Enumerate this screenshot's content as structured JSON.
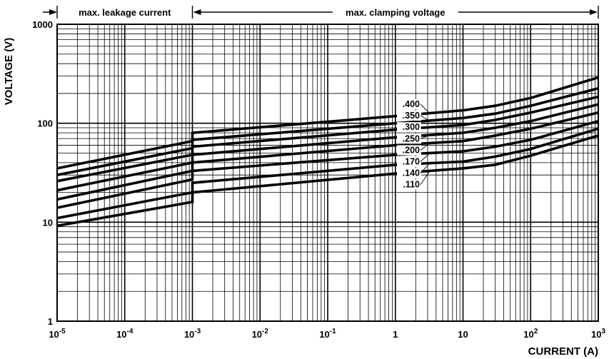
{
  "chart_data": {
    "type": "line",
    "xlabel": "CURRENT (A)",
    "ylabel": "VOLTAGE (V)",
    "x_scale": "log",
    "y_scale": "log",
    "xlim": [
      1e-05,
      1000
    ],
    "ylim": [
      1,
      1000
    ],
    "grid": true,
    "x_ticks": [
      {
        "value": 1e-05,
        "base": "10",
        "exp": "-5"
      },
      {
        "value": 0.0001,
        "base": "10",
        "exp": "-4"
      },
      {
        "value": 0.001,
        "base": "10",
        "exp": "-3"
      },
      {
        "value": 0.01,
        "base": "10",
        "exp": "-2"
      },
      {
        "value": 0.1,
        "base": "10",
        "exp": "-1"
      },
      {
        "value": 1,
        "base": "1",
        "exp": ""
      },
      {
        "value": 10,
        "base": "10",
        "exp": ""
      },
      {
        "value": 100,
        "base": "10",
        "exp": "2"
      },
      {
        "value": 1000,
        "base": "10",
        "exp": "3"
      }
    ],
    "y_ticks": [
      {
        "value": 1,
        "label": "1"
      },
      {
        "value": 10,
        "label": "10"
      },
      {
        "value": 100,
        "label": "100"
      },
      {
        "value": 1000,
        "label": "1000"
      }
    ],
    "regions": [
      {
        "label": "max. leakage current",
        "from": 1e-05,
        "to": 0.001
      },
      {
        "label": "max. clamping voltage",
        "from": 0.001,
        "to": 1000
      }
    ],
    "series": [
      {
        "name": ".400",
        "points": [
          [
            1e-05,
            35
          ],
          [
            0.001,
            66
          ],
          [
            0.001,
            80
          ],
          [
            1,
            118
          ],
          [
            10,
            135
          ],
          [
            30,
            150
          ],
          [
            100,
            180
          ],
          [
            1000,
            290
          ]
        ]
      },
      {
        "name": ".350",
        "points": [
          [
            1e-05,
            30
          ],
          [
            0.001,
            56
          ],
          [
            0.001,
            68
          ],
          [
            1,
            100
          ],
          [
            10,
            113
          ],
          [
            30,
            125
          ],
          [
            100,
            150
          ],
          [
            1000,
            225
          ]
        ]
      },
      {
        "name": ".300",
        "points": [
          [
            1e-05,
            26
          ],
          [
            0.001,
            48
          ],
          [
            0.001,
            58
          ],
          [
            1,
            86
          ],
          [
            10,
            96
          ],
          [
            30,
            108
          ],
          [
            100,
            128
          ],
          [
            1000,
            185
          ]
        ]
      },
      {
        "name": ".250",
        "points": [
          [
            1e-05,
            21
          ],
          [
            0.001,
            40
          ],
          [
            0.001,
            48
          ],
          [
            1,
            72
          ],
          [
            10,
            80
          ],
          [
            30,
            90
          ],
          [
            100,
            105
          ],
          [
            1000,
            155
          ]
        ]
      },
      {
        "name": ".200",
        "points": [
          [
            1e-05,
            17
          ],
          [
            0.001,
            33
          ],
          [
            0.001,
            40
          ],
          [
            1,
            60
          ],
          [
            10,
            66
          ],
          [
            30,
            75
          ],
          [
            100,
            88
          ],
          [
            1000,
            128
          ]
        ]
      },
      {
        "name": ".170",
        "points": [
          [
            1e-05,
            14
          ],
          [
            0.001,
            27
          ],
          [
            0.001,
            33
          ],
          [
            1,
            48
          ],
          [
            10,
            52
          ],
          [
            30,
            58
          ],
          [
            100,
            68
          ],
          [
            1000,
            105
          ]
        ]
      },
      {
        "name": ".140",
        "points": [
          [
            1e-05,
            11
          ],
          [
            0.001,
            20
          ],
          [
            0.001,
            25
          ],
          [
            1,
            38
          ],
          [
            10,
            41
          ],
          [
            30,
            46
          ],
          [
            100,
            55
          ],
          [
            1000,
            88
          ]
        ]
      },
      {
        "name": ".110",
        "points": [
          [
            1e-05,
            9.2
          ],
          [
            0.001,
            16
          ],
          [
            0.001,
            20
          ],
          [
            1,
            31
          ],
          [
            10,
            35
          ],
          [
            30,
            38
          ],
          [
            100,
            47
          ],
          [
            1000,
            75
          ]
        ]
      }
    ]
  }
}
